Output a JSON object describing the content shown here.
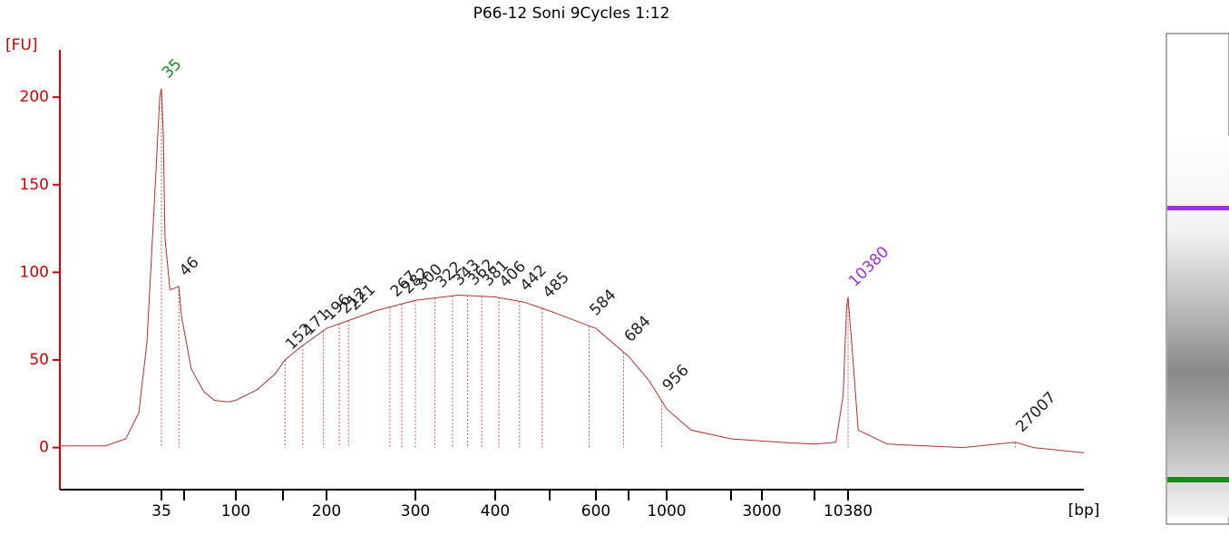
{
  "chart_data": {
    "type": "line",
    "title": "P66-12 Soni 9Cycles 1:12",
    "y_label": "[FU]",
    "x_label": "[bp]",
    "xlim": [
      15,
      40000
    ],
    "xticks": [
      35,
      100,
      200,
      300,
      400,
      600,
      1000,
      3000,
      10380
    ],
    "xminorticks": [
      50,
      150,
      500,
      700,
      2000,
      7000
    ],
    "ylim": [
      -24,
      227
    ],
    "yticks": [
      0,
      50,
      100,
      150,
      200
    ],
    "axis_color": "#cc0000",
    "series": [
      {
        "color": "#b03030",
        "x": [
          15,
          22,
          26,
          29,
          31,
          33,
          34.5,
          35,
          36,
          37,
          40,
          46,
          48,
          55,
          65,
          75,
          90,
          100,
          120,
          140,
          152,
          170,
          200,
          250,
          300,
          350,
          400,
          450,
          500,
          600,
          700,
          850,
          1000,
          1300,
          2000,
          4000,
          7000,
          9000,
          9800,
          10200,
          10380,
          10600,
          11000,
          13000,
          20000,
          27007,
          30000,
          40000
        ],
        "values": [
          1,
          1,
          5,
          20,
          60,
          140,
          200,
          205,
          180,
          120,
          90,
          92,
          75,
          45,
          32,
          27,
          26,
          27,
          33,
          42,
          50,
          58,
          68,
          78,
          84,
          87,
          86,
          83,
          78,
          68,
          52,
          38,
          22,
          10,
          5,
          3,
          2,
          3,
          30,
          80,
          86,
          60,
          10,
          2,
          0,
          3,
          0,
          -3
        ]
      }
    ],
    "peaks": [
      {
        "bp": 35,
        "color": "#1a8a1a"
      },
      {
        "bp": 46,
        "color": "#222222"
      },
      {
        "bp": 152,
        "color": "#222222"
      },
      {
        "bp": 171,
        "color": "#222222"
      },
      {
        "bp": 196,
        "color": "#222222"
      },
      {
        "bp": 212,
        "color": "#222222"
      },
      {
        "bp": 221,
        "color": "#222222"
      },
      {
        "bp": 267,
        "color": "#222222"
      },
      {
        "bp": 282,
        "color": "#222222"
      },
      {
        "bp": 300,
        "color": "#222222"
      },
      {
        "bp": 322,
        "color": "#222222"
      },
      {
        "bp": 343,
        "color": "#222222"
      },
      {
        "bp": 362,
        "color": "#222222"
      },
      {
        "bp": 381,
        "color": "#222222"
      },
      {
        "bp": 406,
        "color": "#222222"
      },
      {
        "bp": 442,
        "color": "#222222"
      },
      {
        "bp": 485,
        "color": "#222222"
      },
      {
        "bp": 584,
        "color": "#222222"
      },
      {
        "bp": 684,
        "color": "#222222"
      },
      {
        "bp": 956,
        "color": "#222222"
      },
      {
        "bp": 10380,
        "color": "#9b30e0"
      },
      {
        "bp": 27007,
        "color": "#222222"
      }
    ]
  }
}
